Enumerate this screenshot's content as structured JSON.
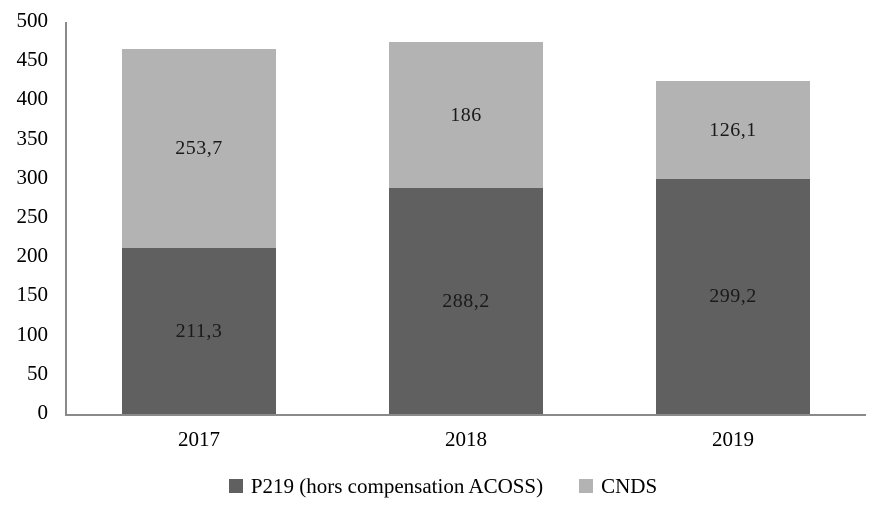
{
  "chart_data": {
    "type": "bar",
    "stacked": true,
    "title": "",
    "xlabel": "",
    "ylabel": "",
    "categories": [
      "2017",
      "2018",
      "2019"
    ],
    "series": [
      {
        "name": "P219 (hors compensation ACOSS)",
        "color": "#606060",
        "values": [
          211.3,
          288.2,
          299.2
        ],
        "value_labels": [
          "211,3",
          "288,2",
          "299,2"
        ]
      },
      {
        "name": "CNDS",
        "color": "#b3b3b3",
        "values": [
          253.7,
          186,
          126.1
        ],
        "value_labels": [
          "253,7",
          "186",
          "126,1"
        ]
      }
    ],
    "totals": [
      465.0,
      474.2,
      425.3
    ],
    "ylim": [
      0,
      500
    ],
    "ytick_step": 50,
    "ytick_labels": [
      "0",
      "50",
      "100",
      "150",
      "200",
      "250",
      "300",
      "350",
      "400",
      "450",
      "500"
    ],
    "grid": false,
    "legend_position": "bottom",
    "axis_color": "#8a8a8a",
    "label_color": "#1a1a1a",
    "background_color": "#ffffff"
  }
}
